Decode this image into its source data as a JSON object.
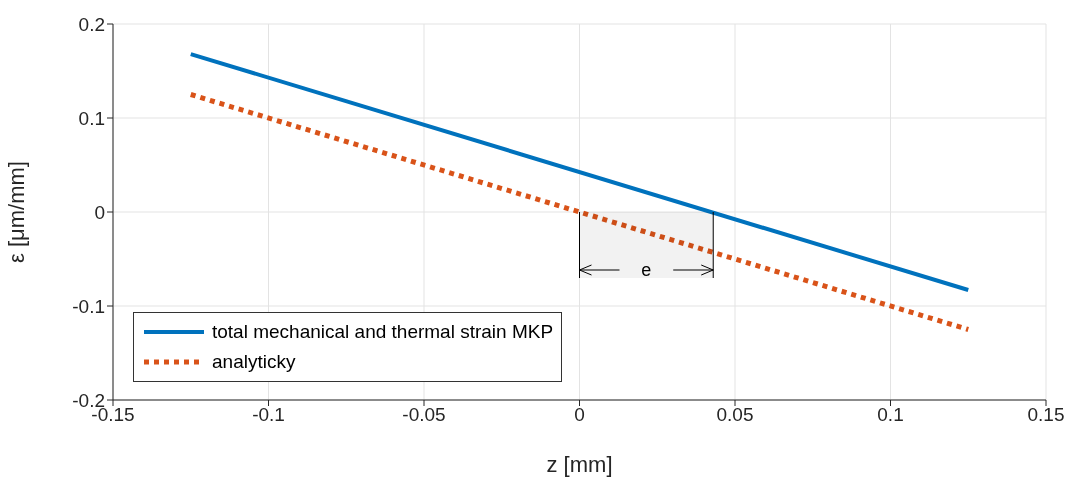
{
  "chart_data": {
    "type": "line",
    "xlabel": "z [mm]",
    "ylabel": "ε [μm/mm]",
    "x": [
      -0.125,
      0.125
    ],
    "series": [
      {
        "name": "total mechanical and thermal strain MKP",
        "color": "#0072bd",
        "values": [
          0.168,
          -0.083
        ],
        "line_style": "solid"
      },
      {
        "name": "analyticky",
        "color": "#d95319",
        "values": [
          0.125,
          -0.125
        ],
        "line_style": "dotted"
      }
    ],
    "xlim": [
      -0.15,
      0.15
    ],
    "xticks": [
      -0.15,
      -0.1,
      -0.05,
      0,
      0.05,
      0.1,
      0.15
    ],
    "ylim": [
      -0.2,
      0.2
    ],
    "yticks": [
      -0.2,
      -0.1,
      0,
      0.1,
      0.2
    ],
    "grid": true,
    "legend": "bottom left",
    "marker": "none",
    "bands": [
      {
        "axis": "x",
        "from": 0,
        "to": 0.043,
        "label": "e"
      }
    ]
  }
}
